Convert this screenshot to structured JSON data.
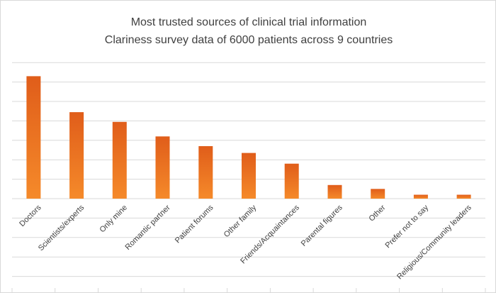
{
  "chart_data": {
    "type": "bar",
    "title": "Most trusted sources of clinical trial information",
    "subtitle": "Clariness survey data of 6000 patients across 9 countries",
    "categories": [
      "Doctors",
      "Scientists/experts",
      "Only mine",
      "Romantic partner",
      "Patient forums",
      "Other family",
      "Friends/Acquaintances",
      "Parental figures",
      "Other",
      "Prefer not to say",
      "Religious/Community leaders"
    ],
    "values": [
      6.3,
      4.45,
      3.95,
      3.2,
      2.7,
      2.35,
      1.8,
      0.7,
      0.5,
      0.2,
      0.2
    ],
    "ylim": [
      0,
      7
    ],
    "grid": true,
    "xlabel": "",
    "ylabel": "",
    "colors": {
      "bar_top": "#e05d1a",
      "bar_bottom": "#f58a2a",
      "grid": "#d9d9d9",
      "text": "#404040"
    }
  }
}
